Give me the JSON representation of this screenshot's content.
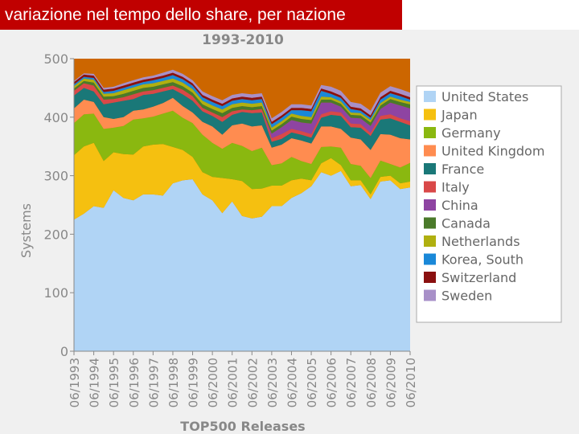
{
  "slide_title": "variazione nel tempo dello share, per nazione",
  "chart_data": {
    "type": "area",
    "stacked": true,
    "title": "1993-2010",
    "xlabel": "TOP500 Releases",
    "ylabel": "Systems",
    "ylim": [
      0,
      500
    ],
    "yticks": [
      0,
      100,
      200,
      300,
      400,
      500
    ],
    "x_tick_labels": [
      "06/1993",
      "06/1994",
      "06/1995",
      "06/1996",
      "06/1997",
      "06/1998",
      "06/1999",
      "06/2000",
      "06/2001",
      "06/2002",
      "06/2003",
      "06/2004",
      "06/2005",
      "06/2006",
      "06/2007",
      "06/2008",
      "06/2009",
      "06/2010"
    ],
    "legend_placement": "right",
    "other_color": "#cc6600",
    "series": [
      {
        "name": "United States",
        "color": "#b0d4f5",
        "values": [
          225,
          235,
          248,
          245,
          275,
          262,
          258,
          268,
          268,
          266,
          287,
          292,
          294,
          268,
          258,
          236,
          256,
          231,
          227,
          230,
          248,
          248,
          262,
          270,
          282,
          306,
          300,
          308,
          282,
          284,
          260,
          290,
          292,
          277,
          280
        ]
      },
      {
        "name": "Japan",
        "color": "#f5c010",
        "values": [
          110,
          115,
          108,
          80,
          65,
          75,
          78,
          82,
          85,
          88,
          62,
          52,
          38,
          38,
          40,
          60,
          38,
          60,
          50,
          48,
          35,
          35,
          30,
          25,
          10,
          15,
          30,
          10,
          10,
          8,
          8,
          8,
          8,
          10,
          10
        ]
      },
      {
        "name": "Germany",
        "color": "#8ab810",
        "values": [
          55,
          55,
          50,
          55,
          42,
          48,
          60,
          48,
          48,
          52,
          62,
          55,
          58,
          64,
          58,
          50,
          62,
          60,
          65,
          70,
          35,
          38,
          40,
          30,
          28,
          28,
          20,
          30,
          28,
          25,
          28,
          28,
          20,
          27,
          32
        ]
      },
      {
        "name": "United Kingdom",
        "color": "#ff8c50",
        "values": [
          25,
          25,
          20,
          20,
          15,
          15,
          15,
          15,
          17,
          18,
          22,
          20,
          18,
          22,
          28,
          24,
          30,
          38,
          42,
          38,
          30,
          32,
          32,
          35,
          35,
          35,
          34,
          32,
          45,
          45,
          48,
          45,
          50,
          50,
          40
        ]
      },
      {
        "name": "France",
        "color": "#1a7878",
        "values": [
          22,
          20,
          18,
          22,
          28,
          28,
          20,
          25,
          22,
          20,
          15,
          20,
          20,
          18,
          18,
          22,
          18,
          20,
          23,
          22,
          10,
          10,
          10,
          10,
          10,
          15,
          20,
          22,
          18,
          20,
          24,
          25,
          28,
          28,
          24
        ]
      },
      {
        "name": "Italy",
        "color": "#d94848",
        "values": [
          8,
          8,
          10,
          8,
          6,
          6,
          8,
          6,
          6,
          6,
          6,
          8,
          8,
          6,
          6,
          8,
          6,
          4,
          5,
          6,
          6,
          8,
          6,
          6,
          6,
          6,
          6,
          6,
          6,
          6,
          5,
          6,
          7,
          6,
          7
        ]
      },
      {
        "name": "China",
        "color": "#8e44a2",
        "values": [
          0,
          0,
          0,
          0,
          0,
          0,
          0,
          0,
          0,
          0,
          0,
          0,
          0,
          0,
          0,
          0,
          0,
          0,
          0,
          0,
          8,
          12,
          15,
          15,
          18,
          20,
          15,
          10,
          10,
          10,
          12,
          12,
          20,
          22,
          22
        ]
      },
      {
        "name": "Canada",
        "color": "#4a7a2a",
        "values": [
          4,
          4,
          5,
          5,
          5,
          6,
          6,
          6,
          6,
          6,
          6,
          6,
          6,
          6,
          6,
          7,
          6,
          6,
          5,
          5,
          5,
          5,
          6,
          6,
          6,
          5,
          5,
          5,
          5,
          5,
          6,
          6,
          6,
          6,
          7
        ]
      },
      {
        "name": "Netherlands",
        "color": "#b0b010",
        "values": [
          4,
          4,
          5,
          5,
          5,
          6,
          6,
          6,
          6,
          6,
          6,
          6,
          6,
          6,
          6,
          6,
          6,
          6,
          6,
          6,
          5,
          5,
          5,
          5,
          5,
          5,
          4,
          4,
          4,
          4,
          4,
          4,
          4,
          4,
          4
        ]
      },
      {
        "name": "Korea, South",
        "color": "#1a88d8",
        "values": [
          3,
          3,
          3,
          3,
          4,
          4,
          4,
          4,
          5,
          5,
          6,
          6,
          6,
          6,
          6,
          6,
          6,
          6,
          6,
          6,
          6,
          6,
          6,
          10,
          10,
          10,
          6,
          6,
          6,
          4,
          4,
          6,
          6,
          6,
          4
        ]
      },
      {
        "name": "Switzerland",
        "color": "#8a1010",
        "values": [
          4,
          4,
          4,
          4,
          4,
          4,
          4,
          4,
          4,
          4,
          4,
          4,
          4,
          4,
          4,
          4,
          4,
          4,
          4,
          4,
          4,
          4,
          4,
          4,
          4,
          4,
          4,
          4,
          4,
          4,
          4,
          4,
          4,
          4,
          4
        ]
      },
      {
        "name": "Sweden",
        "color": "#a890c8",
        "values": [
          2,
          2,
          3,
          3,
          3,
          4,
          4,
          4,
          4,
          5,
          5,
          5,
          5,
          6,
          6,
          6,
          6,
          6,
          6,
          6,
          6,
          6,
          6,
          6,
          6,
          6,
          8,
          8,
          8,
          8,
          8,
          8,
          8,
          8,
          8
        ]
      }
    ]
  }
}
